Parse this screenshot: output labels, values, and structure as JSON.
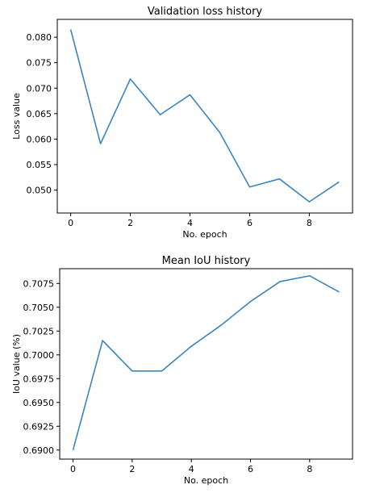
{
  "chart_data": [
    {
      "type": "line",
      "title": "Validation loss history",
      "xlabel": "No. epoch",
      "ylabel": "Loss value",
      "xlim": [
        -0.45,
        9.45
      ],
      "ylim": [
        0.0455,
        0.0835
      ],
      "xticks": [
        0,
        2,
        4,
        6,
        8
      ],
      "xtick_labels": [
        "0",
        "2",
        "4",
        "6",
        "8"
      ],
      "yticks": [
        0.05,
        0.055,
        0.06,
        0.065,
        0.07,
        0.075,
        0.08
      ],
      "ytick_labels": [
        "0.050",
        "0.055",
        "0.060",
        "0.065",
        "0.070",
        "0.075",
        "0.080"
      ],
      "grid": false,
      "color": "#3a85bf",
      "x": [
        0,
        1,
        2,
        3,
        4,
        5,
        6,
        7,
        8,
        9
      ],
      "series": [
        {
          "values": [
            0.0815,
            0.0591,
            0.0718,
            0.0648,
            0.0687,
            0.0613,
            0.0506,
            0.0522,
            0.0477,
            0.0516
          ]
        }
      ]
    },
    {
      "type": "line",
      "title": "Mean IoU history",
      "xlabel": "No. epoch",
      "ylabel": "IoU value (%)",
      "xlim": [
        -0.45,
        9.45
      ],
      "ylim": [
        0.68905,
        0.70905
      ],
      "xticks": [
        0,
        2,
        4,
        6,
        8
      ],
      "xtick_labels": [
        "0",
        "2",
        "4",
        "6",
        "8"
      ],
      "yticks": [
        0.69,
        0.6925,
        0.695,
        0.6975,
        0.7,
        0.7025,
        0.705,
        0.7075
      ],
      "ytick_labels": [
        "0.6900",
        "0.6925",
        "0.6950",
        "0.6975",
        "0.7000",
        "0.7025",
        "0.7050",
        "0.7075"
      ],
      "grid": false,
      "color": "#3a85bf",
      "x": [
        0,
        1,
        2,
        3,
        4,
        5,
        6,
        7,
        8,
        9
      ],
      "series": [
        {
          "values": [
            0.69,
            0.7015,
            0.6983,
            0.6983,
            0.7009,
            0.7031,
            0.7056,
            0.7077,
            0.7083,
            0.7066
          ]
        }
      ]
    }
  ]
}
